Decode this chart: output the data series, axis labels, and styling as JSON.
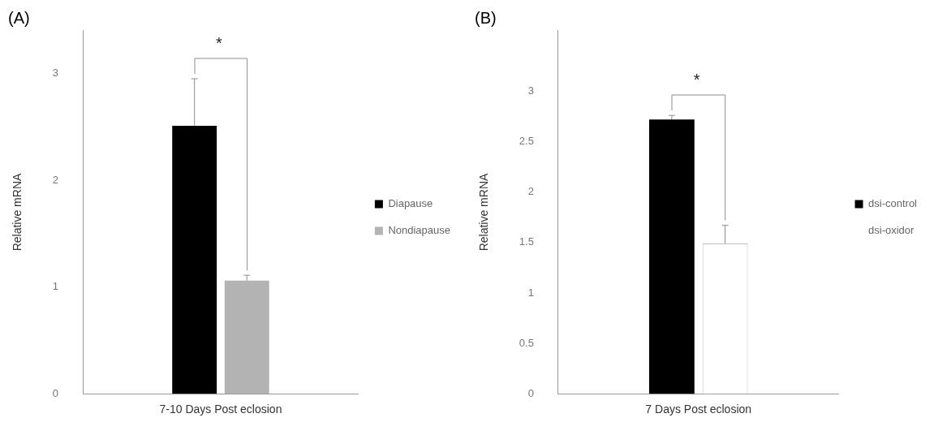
{
  "chart_data": [
    {
      "type": "bar",
      "title": "(A)",
      "ylabel": "Relative mRNA",
      "categories": [
        "7-10 Days Post eclosion"
      ],
      "series": [
        {
          "name": "Diapause",
          "color": "#000000",
          "values": [
            2.51
          ],
          "errors": [
            0.44
          ]
        },
        {
          "name": "Nondiapause",
          "color": "#b3b3b3",
          "values": [
            1.06
          ],
          "errors": [
            0.05
          ]
        }
      ],
      "ylim": [
        0,
        3.4
      ],
      "yticks": [
        0,
        1,
        2,
        3
      ],
      "grid": false,
      "legend": "right",
      "annotations": [
        "*"
      ]
    },
    {
      "type": "bar",
      "title": "(B)",
      "ylabel": "Relative mRNA",
      "categories": [
        "7 Days Post eclosion"
      ],
      "series": [
        {
          "name": "dsi-control",
          "color": "#000000",
          "values": [
            2.72
          ],
          "errors": [
            0.04
          ]
        },
        {
          "name": "dsi-oxidor",
          "color": "#ffffff",
          "values": [
            1.49
          ],
          "errors": [
            0.18
          ]
        }
      ],
      "ylim": [
        0,
        3.6
      ],
      "yticks": [
        0,
        0.5,
        1,
        1.5,
        2,
        2.5,
        3
      ],
      "grid": false,
      "legend": "right",
      "annotations": [
        "*"
      ]
    }
  ]
}
